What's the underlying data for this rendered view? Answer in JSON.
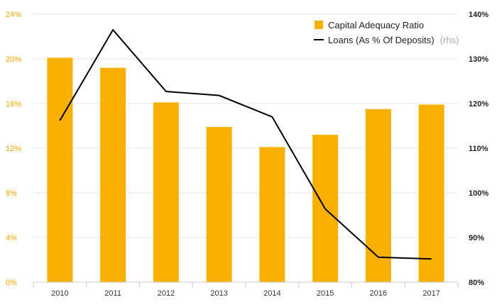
{
  "chart_data": {
    "type": "bar",
    "categories": [
      "2010",
      "2011",
      "2012",
      "2013",
      "2014",
      "2015",
      "2016",
      "2017"
    ],
    "series": [
      {
        "name": "Capital Adequacy Ratio",
        "type": "bar",
        "axis": "left",
        "values": [
          20.1,
          19.2,
          16.1,
          13.9,
          12.1,
          13.2,
          15.5,
          15.9
        ]
      },
      {
        "name": "Loans (As % Of Deposits)",
        "suffix": "(rhs)",
        "type": "line",
        "axis": "right",
        "values": [
          116.2,
          136.5,
          122.7,
          121.8,
          117.0,
          96.4,
          85.6,
          85.2
        ]
      }
    ],
    "y_left": {
      "ticks": [
        "0%",
        "4%",
        "8%",
        "12%",
        "16%",
        "20%",
        "24%"
      ],
      "ylim": [
        0,
        24
      ]
    },
    "y_right": {
      "ticks": [
        "80%",
        "90%",
        "100%",
        "110%",
        "120%",
        "130%",
        "140%"
      ],
      "ylim": [
        80,
        140
      ]
    },
    "legend_position": "top-right",
    "grid": true,
    "colors": {
      "bar": "#f9b000",
      "line": "#000000",
      "left_ticks": "#f5a800"
    }
  }
}
